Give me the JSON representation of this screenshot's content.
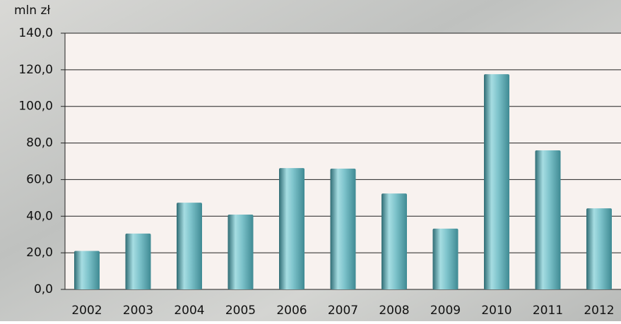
{
  "chart_data": {
    "type": "bar",
    "ylabel": "mln zł",
    "categories": [
      "2002",
      "2003",
      "2004",
      "2005",
      "2006",
      "2007",
      "2008",
      "2009",
      "2010",
      "2011",
      "2012"
    ],
    "values": [
      21,
      30.5,
      47.4,
      40.9,
      66.3,
      66,
      52.4,
      33.2,
      117.6,
      76,
      44.3
    ],
    "color": "#7fc4cc",
    "ylim": [
      0,
      140
    ],
    "yticks": [
      {
        "value": 0,
        "label": "0,0"
      },
      {
        "value": 20,
        "label": "20,0"
      },
      {
        "value": 40,
        "label": "40,0"
      },
      {
        "value": 60,
        "label": "60,0"
      },
      {
        "value": 80,
        "label": "80,0"
      },
      {
        "value": 100,
        "label": "100,0"
      },
      {
        "value": 120,
        "label": "120,0"
      },
      {
        "value": 140,
        "label": "140,0"
      }
    ],
    "grid": true
  }
}
